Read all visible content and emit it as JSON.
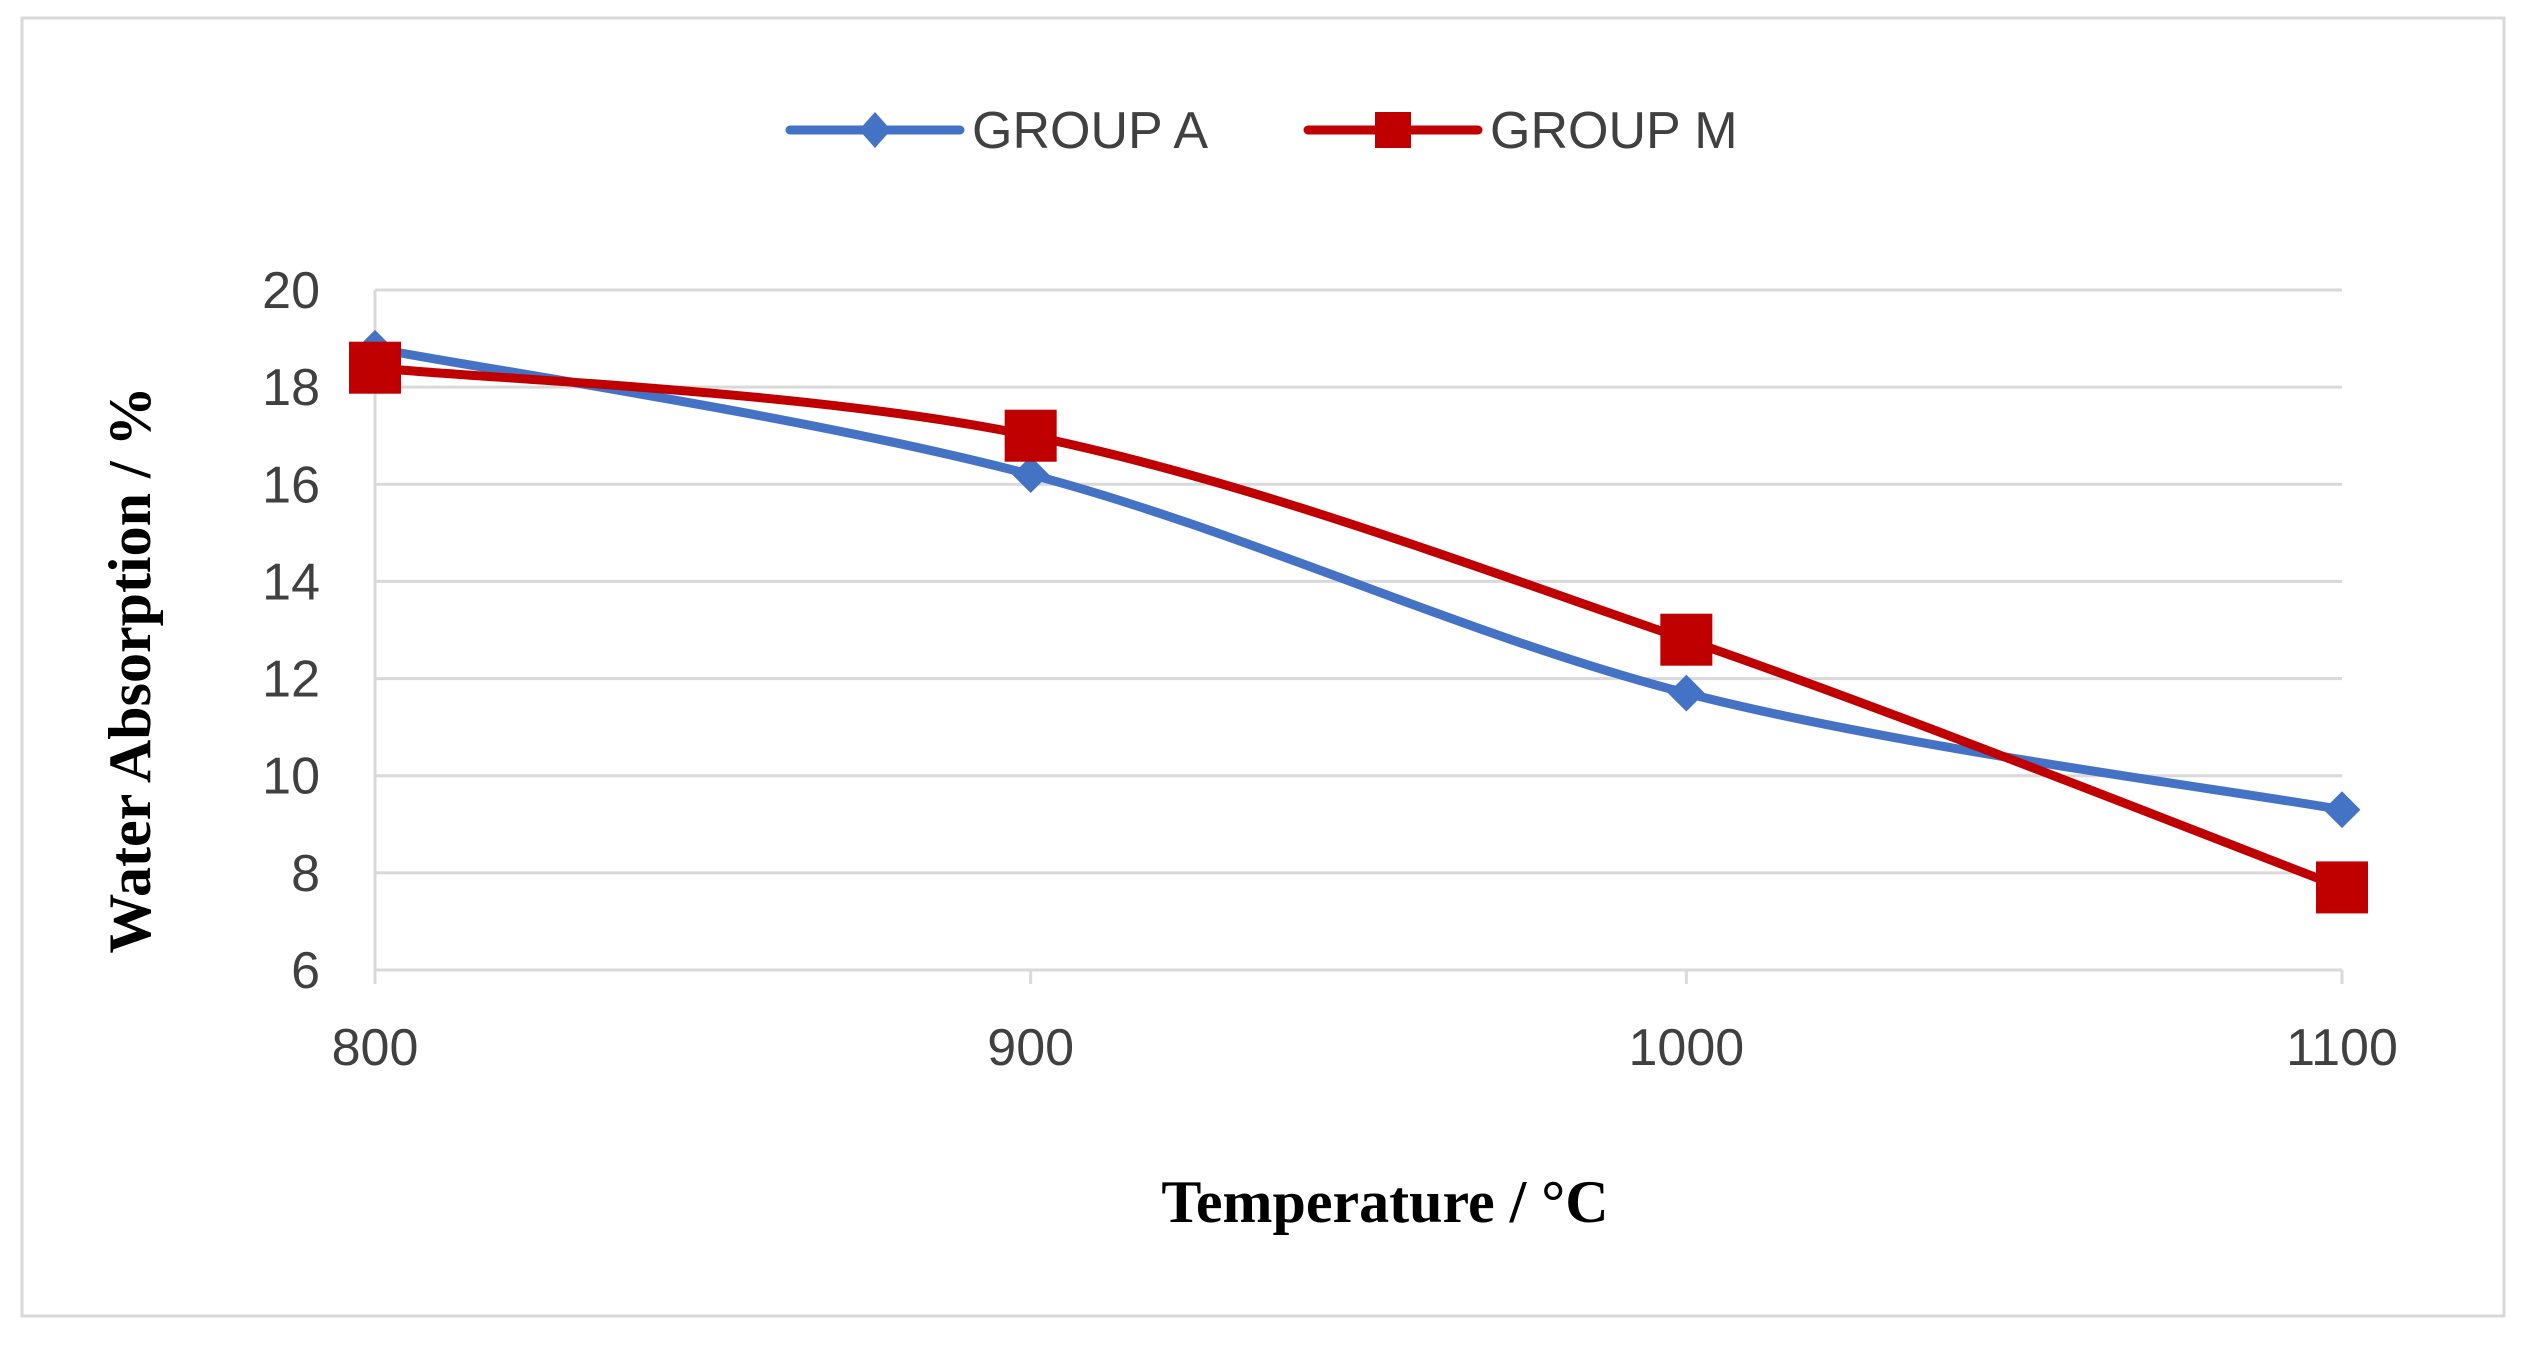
{
  "chart_data": {
    "type": "line",
    "smooth": true,
    "x": [
      800,
      900,
      1000,
      1100
    ],
    "tick_labels_x": [
      "800",
      "900",
      "1000",
      "1100"
    ],
    "tick_labels_y": [
      "6",
      "8",
      "10",
      "12",
      "14",
      "16",
      "18",
      "20"
    ],
    "xlabel": "Temperature / °C",
    "ylabel": "Water Absorption / %",
    "xlim": [
      800,
      1100
    ],
    "ylim": [
      6,
      20
    ],
    "y_ticks": [
      6,
      8,
      10,
      12,
      14,
      16,
      18,
      20
    ],
    "grid": true,
    "legend_position": "top-center",
    "series": [
      {
        "name": "GROUP A",
        "values": [
          18.8,
          16.2,
          11.7,
          9.3
        ],
        "color": "#4472C4",
        "marker": "diamond"
      },
      {
        "name": "GROUP M",
        "values": [
          18.4,
          17.0,
          12.8,
          7.7
        ],
        "color": "#C00000",
        "marker": "square"
      }
    ]
  }
}
